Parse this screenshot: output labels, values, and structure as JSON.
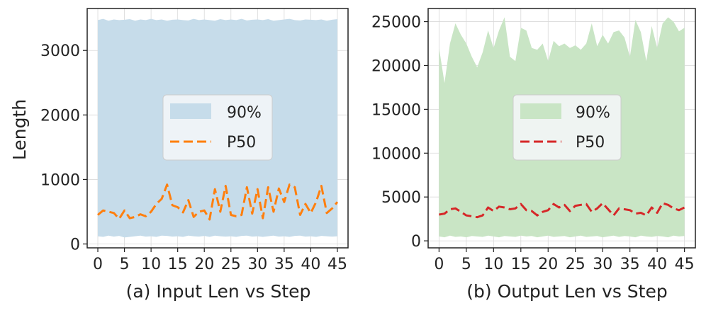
{
  "chart_data": [
    {
      "type": "area",
      "title": "(a) Input Len vs Step",
      "xlabel": "(a) Input Len vs Step",
      "ylabel": "Length",
      "xlim": [
        -2,
        47
      ],
      "ylim": [
        -60,
        3650
      ],
      "xticks": [
        0,
        5,
        10,
        15,
        20,
        25,
        30,
        35,
        40,
        45
      ],
      "yticks": [
        0,
        1000,
        2000,
        3000
      ],
      "grid": true,
      "legend_position": "center",
      "x": [
        0,
        1,
        2,
        3,
        4,
        5,
        6,
        7,
        8,
        9,
        10,
        11,
        12,
        13,
        14,
        15,
        16,
        17,
        18,
        19,
        20,
        21,
        22,
        23,
        24,
        25,
        26,
        27,
        28,
        29,
        30,
        31,
        32,
        33,
        34,
        35,
        36,
        37,
        38,
        39,
        40,
        41,
        42,
        43,
        44,
        45
      ],
      "series": [
        {
          "name": "90%",
          "kind": "band",
          "color": "#c6dcea",
          "lower": [
            120,
            110,
            130,
            115,
            125,
            100,
            110,
            120,
            130,
            115,
            120,
            110,
            130,
            125,
            115,
            120,
            110,
            130,
            120,
            115,
            125,
            110,
            130,
            120,
            115,
            120,
            110,
            125,
            130,
            115,
            120,
            110,
            120,
            130,
            115,
            120,
            110,
            125,
            130,
            115,
            120,
            110,
            125,
            120,
            115,
            120
          ],
          "upper": [
            3470,
            3490,
            3460,
            3480,
            3470,
            3475,
            3485,
            3460,
            3480,
            3470,
            3490,
            3470,
            3480,
            3460,
            3475,
            3480,
            3470,
            3465,
            3490,
            3470,
            3480,
            3470,
            3460,
            3485,
            3470,
            3480,
            3470,
            3490,
            3465,
            3475,
            3480,
            3470,
            3485,
            3460,
            3470,
            3480,
            3490,
            3470,
            3465,
            3480,
            3475,
            3470,
            3480,
            3460,
            3475,
            3485
          ]
        },
        {
          "name": "P50",
          "kind": "line",
          "color": "#ff7f0e",
          "dash": "dashed",
          "values": [
            450,
            520,
            500,
            480,
            390,
            520,
            400,
            420,
            460,
            430,
            500,
            620,
            700,
            920,
            600,
            570,
            490,
            680,
            420,
            500,
            520,
            380,
            850,
            500,
            900,
            450,
            430,
            450,
            880,
            470,
            850,
            400,
            880,
            500,
            860,
            650,
            920,
            880,
            450,
            620,
            480,
            650,
            900,
            480,
            550,
            650
          ]
        }
      ]
    },
    {
      "type": "area",
      "title": "(b) Output Len vs Step",
      "xlabel": "(b) Output Len vs Step",
      "ylabel": "",
      "xlim": [
        -2,
        47
      ],
      "ylim": [
        -800,
        26500
      ],
      "xticks": [
        0,
        5,
        10,
        15,
        20,
        25,
        30,
        35,
        40,
        45
      ],
      "yticks": [
        0,
        5000,
        10000,
        15000,
        20000,
        25000
      ],
      "grid": true,
      "legend_position": "center",
      "x": [
        0,
        1,
        2,
        3,
        4,
        5,
        6,
        7,
        8,
        9,
        10,
        11,
        12,
        13,
        14,
        15,
        16,
        17,
        18,
        19,
        20,
        21,
        22,
        23,
        24,
        25,
        26,
        27,
        28,
        29,
        30,
        31,
        32,
        33,
        34,
        35,
        36,
        37,
        38,
        39,
        40,
        41,
        42,
        43,
        44,
        45
      ],
      "series": [
        {
          "name": "90%",
          "kind": "band",
          "color": "#c9e5c5",
          "lower": [
            500,
            400,
            600,
            450,
            500,
            400,
            550,
            500,
            450,
            600,
            500,
            400,
            550,
            500,
            450,
            600,
            500,
            550,
            400,
            500,
            600,
            450,
            500,
            550,
            400,
            500,
            600,
            450,
            500,
            550,
            400,
            500,
            600,
            450,
            550,
            500,
            400,
            600,
            500,
            450,
            550,
            500,
            400,
            600,
            500,
            550
          ],
          "upper": [
            22000,
            18000,
            22500,
            24800,
            23500,
            22500,
            21000,
            19800,
            21500,
            24000,
            22000,
            24000,
            25500,
            21000,
            20500,
            24300,
            24000,
            22000,
            21800,
            22500,
            20500,
            22800,
            22200,
            22500,
            22000,
            22300,
            21800,
            22500,
            24800,
            22200,
            23500,
            22500,
            23800,
            24000,
            23200,
            21000,
            25200,
            23800,
            20500,
            24500,
            22000,
            24800,
            25500,
            25000,
            23900,
            24300
          ]
        },
        {
          "name": "P50",
          "kind": "line",
          "color": "#d62728",
          "dash": "dashed",
          "values": [
            3000,
            3100,
            3600,
            3700,
            3300,
            2900,
            2800,
            2700,
            2900,
            3800,
            3400,
            3900,
            3800,
            3600,
            3700,
            4200,
            3500,
            3400,
            2900,
            3300,
            3500,
            4200,
            3800,
            4100,
            3400,
            4000,
            4100,
            4200,
            3300,
            3700,
            4300,
            3600,
            2900,
            3700,
            3600,
            3500,
            3100,
            3200,
            2900,
            3800,
            3200,
            4300,
            4100,
            3700,
            3500,
            3800
          ]
        }
      ]
    }
  ]
}
